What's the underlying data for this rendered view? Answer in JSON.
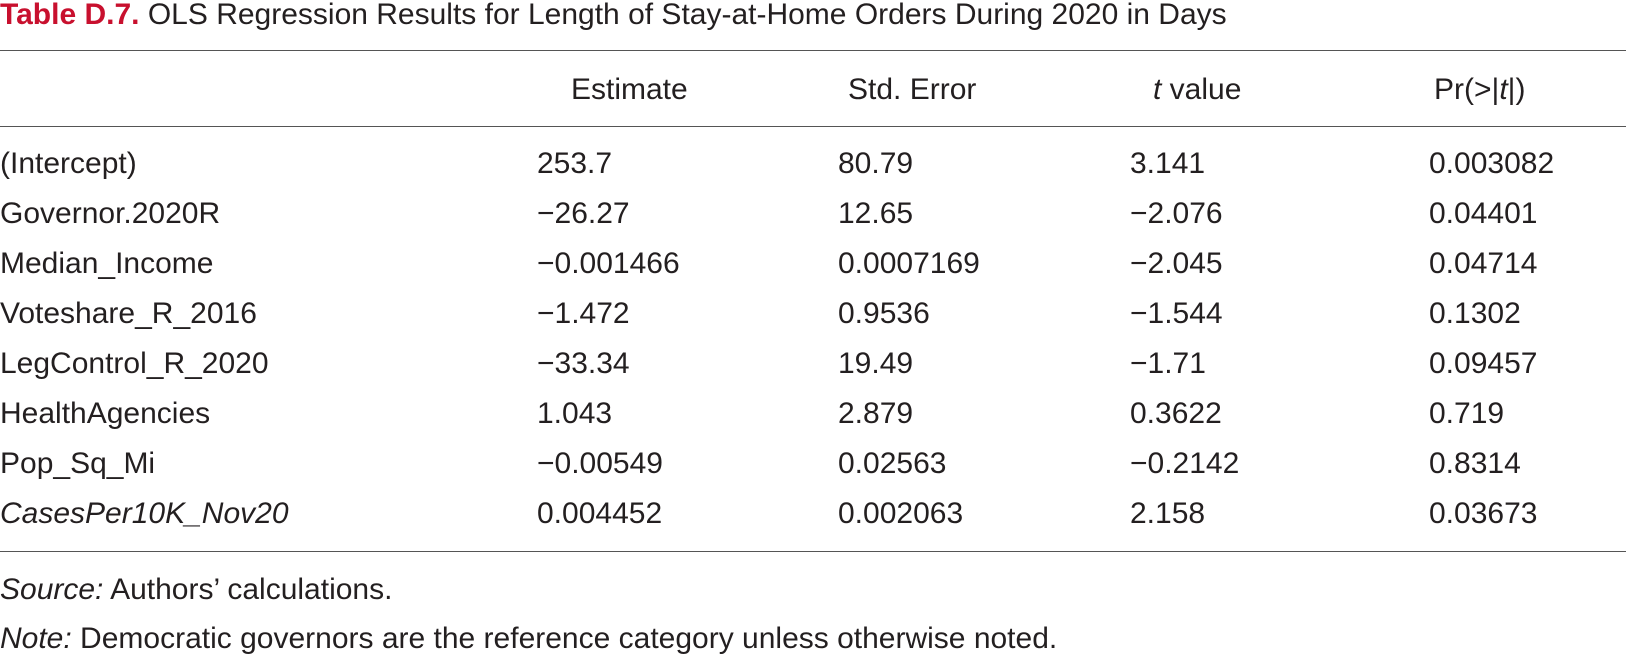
{
  "header": {
    "label": "Table D.7.",
    "title": "OLS Regression Results for Length of Stay-at-Home Orders During 2020 in Days"
  },
  "table": {
    "columns": [
      [
        "Estimate"
      ],
      [
        "Std. Error"
      ],
      [
        "t",
        " value"
      ],
      [
        "Pr(>|",
        "t",
        "|)"
      ]
    ],
    "rows": [
      [
        "(Intercept)",
        "253.7",
        "80.79",
        "3.141",
        "0.003082"
      ],
      [
        "Governor.2020R",
        "−26.27",
        "12.65",
        "−2.076",
        "0.04401"
      ],
      [
        "Median_Income",
        "−0.001466",
        "0.0007169",
        "−2.045",
        "0.04714"
      ],
      [
        "Voteshare_R_2016",
        "−1.472",
        "0.9536",
        "−1.544",
        "0.1302"
      ],
      [
        "LegControl_R_2020",
        "−33.34",
        "19.49",
        "−1.71",
        "0.09457"
      ],
      [
        "HealthAgencies",
        "1.043",
        "2.879",
        "0.3622",
        "0.719"
      ],
      [
        "Pop_Sq_Mi",
        "−0.00549",
        "0.02563",
        "−0.2142",
        "0.8314"
      ],
      [
        "CasesPer10K_Nov20",
        "0.004452",
        "0.002063",
        "2.158",
        "0.03673"
      ]
    ]
  },
  "notes": {
    "source_label": "Source:",
    "source": " Authors’ calculations.",
    "note_label": "Note:",
    "note": " Democratic governors are the reference category unless otherwise noted."
  }
}
